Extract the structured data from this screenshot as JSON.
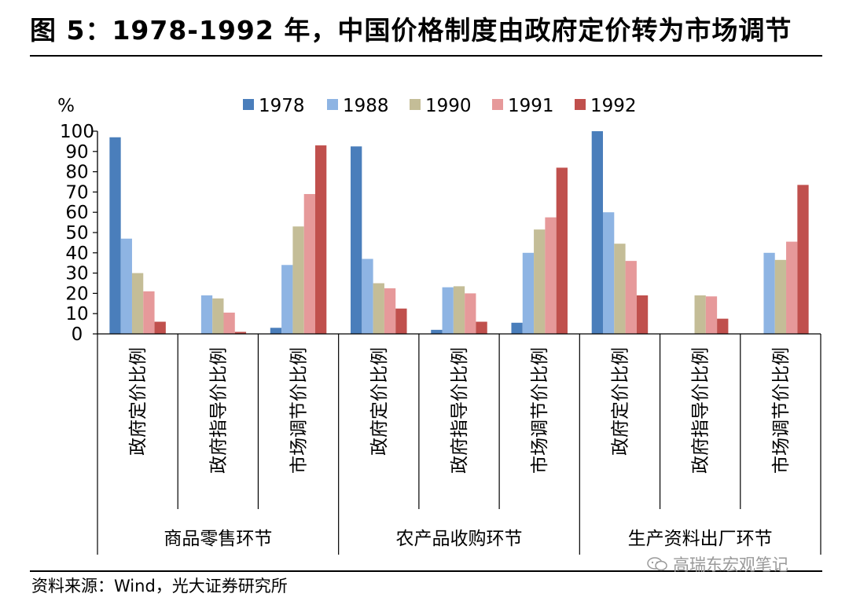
{
  "title": "图 5：1978-1992 年，中国价格制度由政府定价转为市场调节",
  "source": "资料来源：Wind，光大证券研究所",
  "watermark": "高瑞东宏观笔记",
  "watermark_icon": "wechat-icon",
  "chart_data": {
    "type": "bar",
    "ylabel": "%",
    "ylim": [
      0,
      100
    ],
    "yticks": [
      0,
      10,
      20,
      30,
      40,
      50,
      60,
      70,
      80,
      90,
      100
    ],
    "legend_position": "top",
    "grid": false,
    "groups": [
      "商品零售环节",
      "农产品收购环节",
      "生产资料出厂环节"
    ],
    "categories": [
      "政府定价比例",
      "政府指导价比例",
      "市场调节价比例",
      "政府定价比例",
      "政府指导价比例",
      "市场调节价比例",
      "政府定价比例",
      "政府指导价比例",
      "市场调节价比例"
    ],
    "series": [
      {
        "name": "1978",
        "color": "#4a7ebb",
        "values": [
          97,
          0,
          3,
          92.5,
          2,
          5.5,
          100,
          0,
          0
        ]
      },
      {
        "name": "1988",
        "color": "#8eb4e3",
        "values": [
          47,
          19,
          34,
          37,
          23,
          40,
          60,
          0,
          40
        ]
      },
      {
        "name": "1990",
        "color": "#c4bd97",
        "values": [
          30,
          17.5,
          53,
          25,
          23.5,
          51.5,
          44.5,
          19,
          36.5
        ]
      },
      {
        "name": "1991",
        "color": "#e6999a",
        "values": [
          21,
          10.5,
          69,
          22.5,
          20,
          57.5,
          36,
          18.5,
          45.5
        ]
      },
      {
        "name": "1992",
        "color": "#c0504d",
        "values": [
          6,
          1,
          93,
          12.5,
          6,
          82,
          19,
          7.5,
          73.5
        ]
      }
    ]
  }
}
